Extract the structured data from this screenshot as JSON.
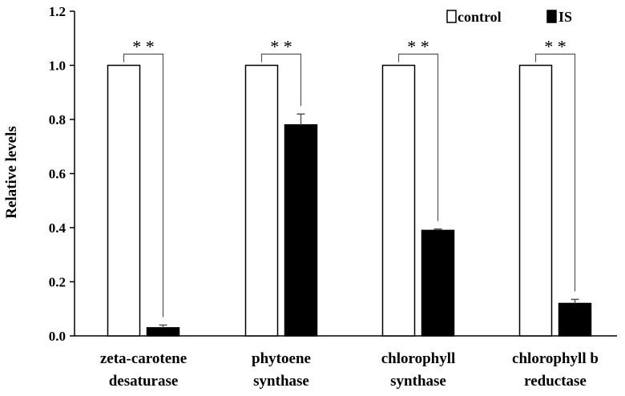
{
  "chart_data": {
    "type": "bar",
    "ylabel": "Relative  levels",
    "xlabel": "",
    "ylim": [
      0,
      1.2
    ],
    "yticks": [
      "0.0",
      "0.2",
      "0.4",
      "0.6",
      "0.8",
      "1.0",
      "1.2"
    ],
    "categories": [
      [
        "zeta-carotene",
        "desaturase"
      ],
      [
        "phytoene",
        "synthase"
      ],
      [
        "chlorophyll",
        "synthase"
      ],
      [
        "chlorophyll b",
        "reductase"
      ]
    ],
    "series": [
      {
        "name": "control",
        "values": [
          1.0,
          1.0,
          1.0,
          1.0
        ],
        "errors": [
          0,
          0,
          0,
          0
        ],
        "color": "#ffffff"
      },
      {
        "name": "IS",
        "values": [
          0.03,
          0.78,
          0.39,
          0.12
        ],
        "errors": [
          0.01,
          0.04,
          0.005,
          0.015
        ],
        "color": "#000000"
      }
    ],
    "significance": [
      "* *",
      "* *",
      "* *",
      "* *"
    ],
    "legend_position": "top-right",
    "grid": false
  }
}
